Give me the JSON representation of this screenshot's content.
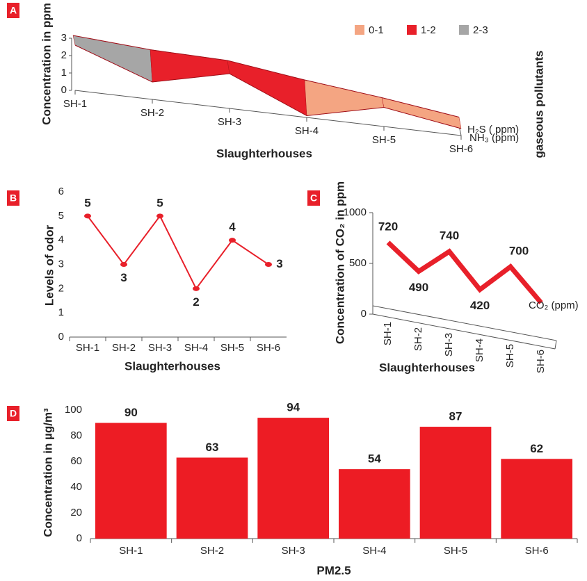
{
  "chart_data": [
    {
      "panel": "A",
      "type": "surface3d",
      "ylabel": "Concentration in ppm",
      "xlabel": "Slaughterhouses",
      "zlabel": "gaseous pollutants",
      "categories": [
        "SH-1",
        "SH-2",
        "SH-3",
        "SH-4",
        "SH-5",
        "SH-6"
      ],
      "series": [
        {
          "name": "H₂S ( ppm)",
          "values": [
            2.6,
            2.3,
            2.2,
            1.6,
            1.1,
            0.5
          ]
        },
        {
          "name": "NH₃ (ppm)",
          "values": [
            2.6,
            1.0,
            2.0,
            0.1,
            1.1,
            0.4
          ]
        }
      ],
      "ylim": [
        0,
        3
      ],
      "yticks": [
        0,
        1,
        2,
        3
      ],
      "bands": [
        {
          "label": "0-1",
          "color": "#f4a582"
        },
        {
          "label": "1-2",
          "color": "#e8202a"
        },
        {
          "label": "2-3",
          "color": "#a6a6a6"
        }
      ]
    },
    {
      "panel": "B",
      "type": "line",
      "ylabel": "Levels of odor",
      "xlabel": "Slaughterhouses",
      "categories": [
        "SH-1",
        "SH-2",
        "SH-3",
        "SH-4",
        "SH-5",
        "SH-6"
      ],
      "values": [
        5,
        3,
        5,
        2,
        4,
        3
      ],
      "color": "#e8202a",
      "ylim": [
        0,
        6
      ],
      "yticks": [
        0,
        1,
        2,
        3,
        4,
        5,
        6
      ]
    },
    {
      "panel": "C",
      "type": "ribbon3d",
      "ylabel": "Concentration of CO₂ in ppm",
      "xlabel": "Slaughterhouses",
      "series_name": "CO₂ (ppm)",
      "categories": [
        "SH-1",
        "SH-2",
        "SH-3",
        "SH-4",
        "SH-5",
        "SH-6"
      ],
      "values": [
        720,
        490,
        740,
        420,
        700,
        400
      ],
      "value_labels": [
        "720",
        "490",
        "740",
        "420",
        "700",
        null
      ],
      "color": "#e8202a",
      "ylim": [
        0,
        1000
      ],
      "yticks": [
        0,
        500,
        1000
      ]
    },
    {
      "panel": "D",
      "type": "bar",
      "ylabel": "Concentration in µg/m³",
      "xlabel": "PM2.5",
      "categories": [
        "SH-1",
        "SH-2",
        "SH-3",
        "SH-4",
        "SH-5",
        "SH-6"
      ],
      "values": [
        90,
        63,
        94,
        54,
        87,
        62
      ],
      "color": "#ed1c24",
      "ylim": [
        0,
        100
      ],
      "yticks": [
        0,
        20,
        40,
        60,
        80,
        100
      ]
    }
  ]
}
